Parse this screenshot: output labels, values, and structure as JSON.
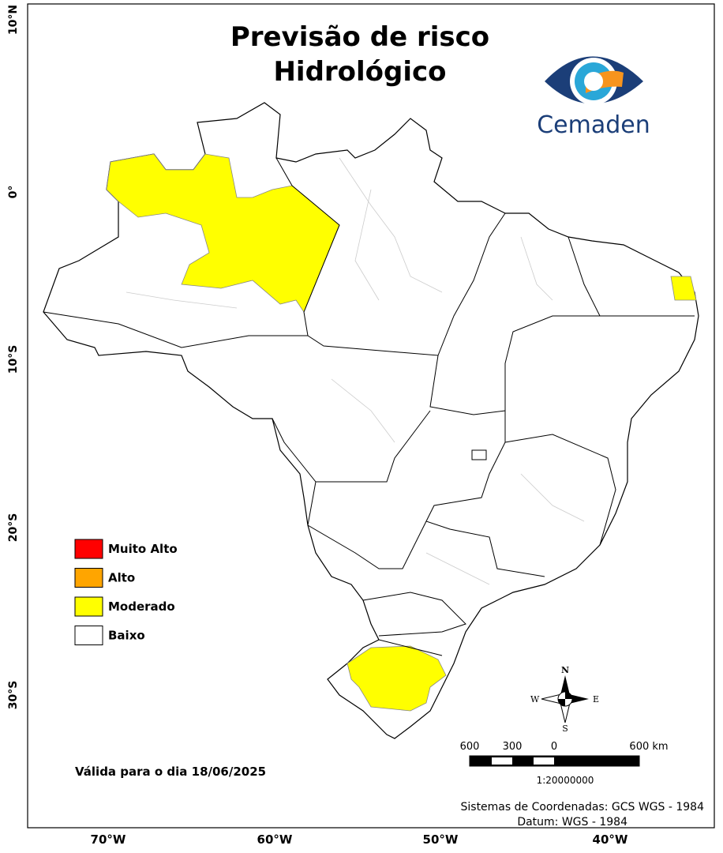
{
  "header": {
    "title_line1": "Previsão de risco",
    "title_line2": "Hidrológico"
  },
  "logo": {
    "text": "Cemaden"
  },
  "legend": {
    "items": [
      {
        "label": "Muito Alto",
        "color": "#ff0000"
      },
      {
        "label": "Alto",
        "color": "#ffa500"
      },
      {
        "label": "Moderado",
        "color": "#ffff00"
      },
      {
        "label": "Baixo",
        "color": "#ffffff"
      }
    ]
  },
  "valid_date": "Válida para o dia 18/06/2025",
  "axes": {
    "x_labels": [
      "70°W",
      "60°W",
      "50°W",
      "40°W"
    ],
    "y_labels": [
      "10°N",
      "0°",
      "10°S",
      "20°S",
      "30°S"
    ]
  },
  "compass": {
    "n": "N",
    "s": "S",
    "e": "E",
    "w": "W"
  },
  "scale": {
    "labels": [
      "600",
      "300",
      "0",
      "600 km"
    ],
    "ratio": "1:20000000"
  },
  "footer": {
    "line1": "Sistemas de Coordenadas: GCS WGS - 1984",
    "line2": "Datum: WGS - 1984"
  }
}
